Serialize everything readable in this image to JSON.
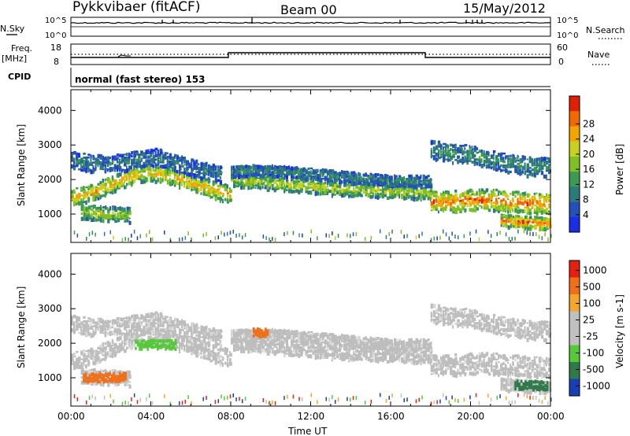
{
  "header": {
    "station": "Pykkvibaer (fitACF)",
    "beam": "Beam 00",
    "date": "15/May/2012"
  },
  "aux_panels": {
    "nsky_label": "N.Sky",
    "nsearch_label": "N.Search",
    "freq_label_1": "Freq.",
    "freq_label_2": "[MHz]",
    "nave_label": "Nave",
    "cpid_label": "CPID",
    "noise_ticks_left": [
      "10^5",
      "10^0"
    ],
    "noise_ticks_right": [
      "10^5",
      "10^0"
    ],
    "freq_ticks": [
      "18",
      "8"
    ],
    "nave_ticks": [
      "60",
      "0"
    ],
    "cpid_text": "normal (fast stereo) 153"
  },
  "chart_data": [
    {
      "type": "heatmap",
      "title": "",
      "panel": "power",
      "xlabel": "",
      "ylabel": "Slant Range [km]",
      "x_range_hours": [
        0,
        24
      ],
      "ylim": [
        180,
        4600
      ],
      "y_ticks": [
        "1000",
        "2000",
        "3000",
        "4000"
      ],
      "colorbar": {
        "label": "Power [dB]",
        "ticks": [
          "4",
          "8",
          "12",
          "16",
          "20",
          "24",
          "28"
        ],
        "colors": [
          "#1a2ee6",
          "#2450b8",
          "#2d7a7a",
          "#3d9a55",
          "#7fc024",
          "#c8d21e",
          "#f2a500",
          "#f06a00",
          "#e02000"
        ]
      },
      "bands": [
        {
          "name": "main",
          "start_h": 0,
          "end_h": 8.0,
          "center": [
            1500,
            1650,
            1900,
            2150,
            2250,
            2150,
            1950,
            1750,
            1600
          ],
          "width": 260,
          "level": 0.75
        },
        {
          "name": "main",
          "start_h": 8.0,
          "end_h": 18.0,
          "center": [
            2050,
            2000,
            1950,
            1900,
            1850,
            1800,
            1750,
            1750,
            1700,
            1700,
            1650
          ],
          "width": 220,
          "level": 0.6
        },
        {
          "name": "main",
          "start_h": 18.0,
          "end_h": 24.0,
          "center": [
            1400,
            1400,
            1450,
            1450,
            1400,
            1350,
            1350
          ],
          "width": 320,
          "level": 0.9
        },
        {
          "name": "upper",
          "start_h": 0,
          "end_h": 7.5,
          "center": [
            2600,
            2500,
            2500,
            2600,
            2700,
            2500,
            2300,
            2200
          ],
          "width": 260,
          "level": 0.25
        },
        {
          "name": "upper",
          "start_h": 8.0,
          "end_h": 18.0,
          "center": [
            2250,
            2300,
            2300,
            2250,
            2200,
            2150,
            2100,
            2050,
            2000,
            2000,
            2000
          ],
          "width": 160,
          "level": 0.3
        },
        {
          "name": "upper",
          "start_h": 18.0,
          "end_h": 24.0,
          "center": [
            2900,
            2800,
            2750,
            2600,
            2500,
            2400,
            2400
          ],
          "width": 280,
          "level": 0.35
        },
        {
          "name": "lower",
          "start_h": 0.5,
          "end_h": 3.0,
          "center": [
            1100,
            1050,
            1000
          ],
          "width": 220,
          "level": 0.6
        },
        {
          "name": "lower",
          "start_h": 21.5,
          "end_h": 24.0,
          "center": [
            850,
            800,
            750
          ],
          "width": 180,
          "level": 0.95
        }
      ],
      "near_range_echoes_km": [
        300,
        560
      ]
    },
    {
      "type": "heatmap",
      "title": "",
      "panel": "velocity",
      "xlabel": "Time UT",
      "ylabel": "Slant Range [km]",
      "x_range_hours": [
        0,
        24
      ],
      "ylim": [
        180,
        4600
      ],
      "x_ticks": [
        "00:00",
        "04:00",
        "08:00",
        "12:00",
        "16:00",
        "20:00",
        "00:00"
      ],
      "y_ticks": [
        "1000",
        "2000",
        "3000",
        "4000"
      ],
      "colorbar": {
        "label": "Velocity [m s-1]",
        "ticks": [
          "1000",
          "500",
          "100",
          "25",
          "-25",
          "-100",
          "-500",
          "-1000"
        ],
        "colors": [
          "#1a3fb4",
          "#2e7a48",
          "#55c93a",
          "#c0c0c0",
          "#c0c0c0",
          "#f5a52a",
          "#f0701a",
          "#e52010"
        ]
      },
      "dominant_color": "#bdbdbd",
      "highlights": [
        {
          "start_h": 0.6,
          "end_h": 2.8,
          "center_km": 1050,
          "color": "#f0701a"
        },
        {
          "start_h": 22.2,
          "end_h": 23.9,
          "center_km": 820,
          "color": "#2e7a48"
        },
        {
          "start_h": 9.1,
          "end_h": 9.8,
          "center_km": 2350,
          "color": "#f0701a"
        },
        {
          "start_h": 3.2,
          "end_h": 5.2,
          "center_km": 2000,
          "color": "#55c93a"
        }
      ]
    }
  ]
}
